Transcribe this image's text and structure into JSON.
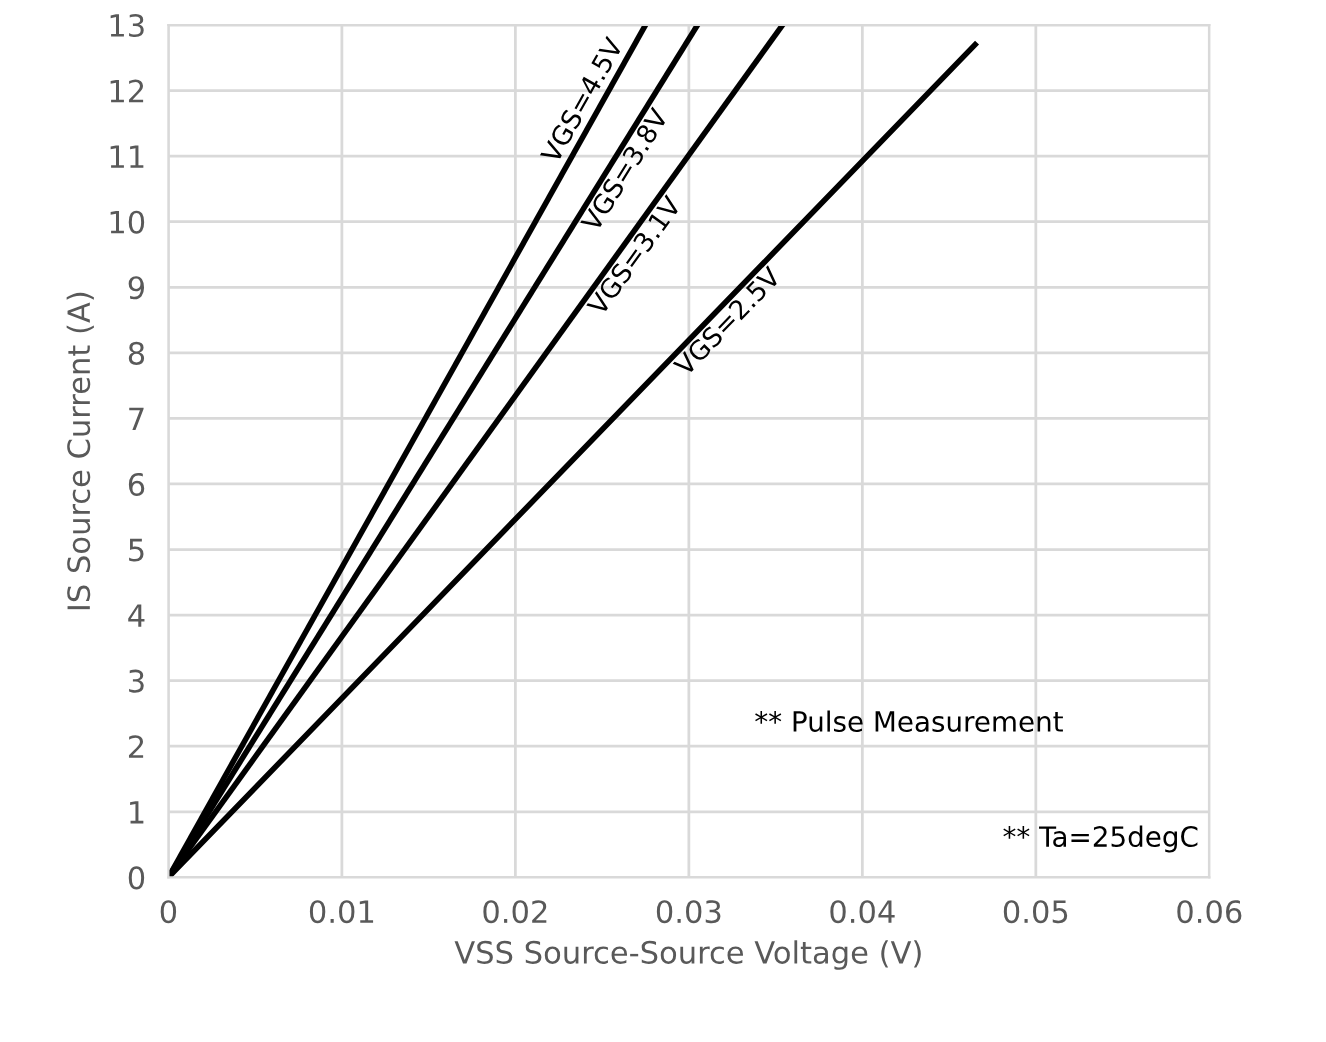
{
  "chart_data": {
    "type": "line",
    "xlabel": "VSS Source-Source Voltage (V)",
    "ylabel": "IS Source Current (A)",
    "xlim": [
      0,
      0.06
    ],
    "xticks": [
      0,
      0.01,
      0.02,
      0.03,
      0.04,
      0.05,
      0.06
    ],
    "ylim": [
      0,
      13
    ],
    "yticks": [
      0,
      1,
      2,
      3,
      4,
      5,
      6,
      7,
      8,
      9,
      10,
      11,
      12,
      13
    ],
    "grid": true,
    "legend": false,
    "marker": "none",
    "line_style": "solid",
    "series": [
      {
        "name": "VGS=4.5V",
        "color": "#000000",
        "x": [
          0,
          0.0275
        ],
        "values": [
          0,
          13
        ]
      },
      {
        "name": "VGS=3.8V",
        "color": "#000000",
        "x": [
          0,
          0.0305
        ],
        "values": [
          0,
          13
        ]
      },
      {
        "name": "VGS=3.1V",
        "color": "#000000",
        "x": [
          0,
          0.0354
        ],
        "values": [
          0,
          13
        ]
      },
      {
        "name": "VGS=2.5V",
        "color": "#000000",
        "x": [
          0,
          0.0465
        ],
        "values": [
          0,
          12.7
        ]
      }
    ],
    "annotations": [
      "** Pulse Measurement",
      "** Ta=25degC"
    ]
  }
}
